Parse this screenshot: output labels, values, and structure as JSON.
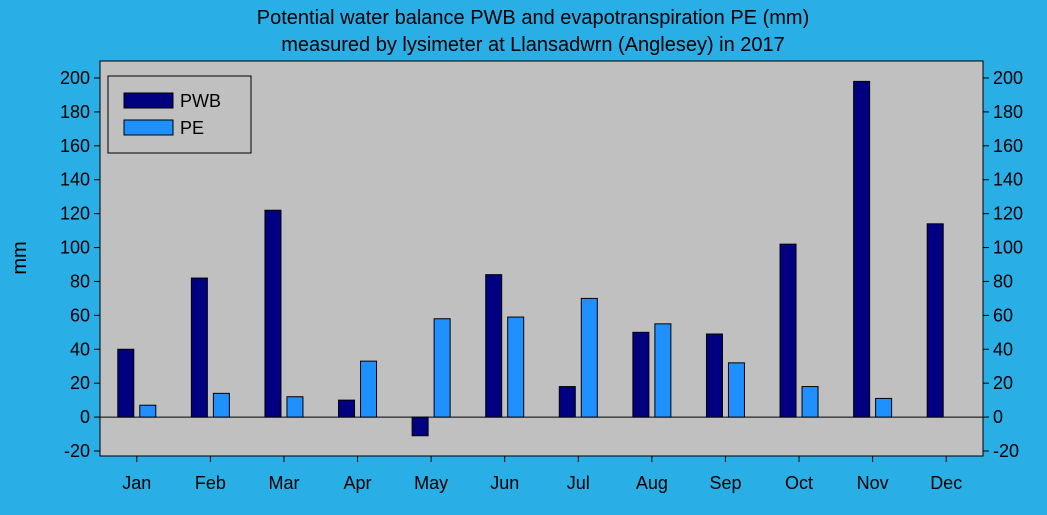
{
  "chart_data": {
    "type": "bar",
    "title_lines": [
      "Potential water balance PWB and evapotranspiration PE (mm)",
      "measured by lysimeter at Llansadwrn (Anglesey) in 2017"
    ],
    "xlabel": "",
    "ylabel": "mm",
    "ylim": [
      -20,
      200
    ],
    "yticks": [
      -20,
      0,
      20,
      40,
      60,
      80,
      100,
      120,
      140,
      160,
      180,
      200
    ],
    "categories": [
      "Jan",
      "Feb",
      "Mar",
      "Apr",
      "May",
      "Jun",
      "Jul",
      "Aug",
      "Sep",
      "Oct",
      "Nov",
      "Dec"
    ],
    "series": [
      {
        "name": "PWB",
        "color": "#000080",
        "values": [
          40,
          82,
          122,
          10,
          -11,
          84,
          18,
          50,
          49,
          102,
          198,
          114
        ]
      },
      {
        "name": "PE",
        "color": "#1e90ff",
        "values": [
          7,
          14,
          12,
          33,
          58,
          59,
          70,
          55,
          32,
          18,
          11,
          null
        ]
      }
    ],
    "plot_background": "#c0c0c0",
    "page_background": "#2aaee6",
    "grid": false,
    "legend_position": "top-left",
    "right_axis_mirror": true
  }
}
